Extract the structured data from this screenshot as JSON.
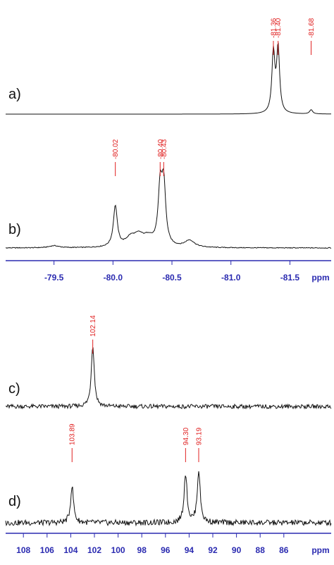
{
  "chart_data": [
    {
      "type": "nmr",
      "xlabel": "ppm",
      "xlim": [
        -79.09,
        -81.85
      ],
      "xticks": [
        -79.5,
        {
          "value": -80,
          "label": "-80.0"
        },
        -80.5,
        {
          "value": -81,
          "label": "-81.0"
        },
        -81.5
      ],
      "axis_color": "#2a2ab0",
      "label_color": "#e02020",
      "spectra": [
        {
          "label": "a)",
          "peaks": [
            -81.36,
            -81.4,
            -81.68
          ],
          "peak_labels": [
            "-81.36",
            "-81.40",
            "-81.68"
          ],
          "heights": [
            86,
            92,
            6
          ],
          "width": 0.015,
          "noise": 0
        },
        {
          "label": "b)",
          "peaks": [
            -80.02,
            -80.4,
            -80.43
          ],
          "peak_labels": [
            "-80.02",
            "-80.40",
            "-80.43"
          ],
          "heights": [
            58,
            78,
            84
          ],
          "width": 0.02,
          "shoulders": [
            -79.5,
            -80.15,
            -80.22,
            -80.3,
            -80.65
          ],
          "shoulder_heights": [
            3,
            12,
            14,
            12,
            10
          ],
          "shoulder_width": 0.05,
          "noise": 0.6
        }
      ]
    },
    {
      "type": "nmr",
      "xlabel": "ppm",
      "xlim": [
        109.5,
        82
      ],
      "xticks": [
        108,
        106,
        104,
        102,
        100,
        98,
        96,
        94,
        92,
        90,
        88,
        86
      ],
      "axis_color": "#2a2ab0",
      "label_color": "#e02020",
      "spectra": [
        {
          "label": "c)",
          "peaks": [
            102.14
          ],
          "peak_labels": [
            "102.14"
          ],
          "heights": [
            88
          ],
          "width": 0.15,
          "noise": 3
        },
        {
          "label": "d)",
          "peaks": [
            103.89,
            94.3,
            93.19
          ],
          "peak_labels": [
            "103.89",
            "94.30",
            "93.19"
          ],
          "heights": [
            52,
            70,
            74
          ],
          "width": 0.15,
          "noise": 4
        }
      ]
    }
  ]
}
